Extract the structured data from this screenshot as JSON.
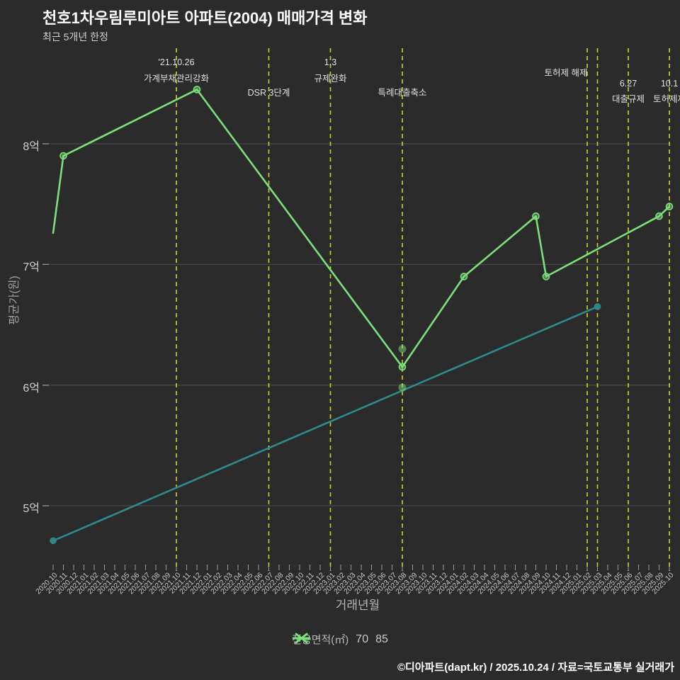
{
  "title": "천호1차우림루미아트 아파트(2004) 매매가격 변화",
  "subtitle": "최근 5개년 한정",
  "footer": "©디아파트(dapt.kr) / 2025.10.24 / 자료=국토교통부 실거래가",
  "colors": {
    "background": "#2b2b2b",
    "grid": "#4e4e53",
    "axis_tick": "#9a9a9a",
    "event_line": "#c3c832",
    "series_70": "#2e8b8a",
    "series_85": "#7ce07a",
    "scatter": "rgba(124,224,122,0.5)"
  },
  "legend": {
    "label": "전용면적(㎡)",
    "items": [
      {
        "name": "70",
        "color": "#2e8b8a"
      },
      {
        "name": "85",
        "color": "#7ce07a"
      }
    ]
  },
  "chart_data": {
    "type": "line",
    "title": "천호1차우림루미아트 아파트(2004) 매매가격 변화",
    "xlabel": "거래년월",
    "ylabel": "평균가(원)",
    "y_unit": "억",
    "ylim": [
      4.5,
      8.8
    ],
    "grid": "horizontal",
    "legend_position": "bottom-center",
    "y_ticks": [
      {
        "label": "8억",
        "value": 8
      },
      {
        "label": "7억",
        "value": 7
      },
      {
        "label": "6억",
        "value": 6
      },
      {
        "label": "5억",
        "value": 5
      }
    ],
    "x_tick_labels": [
      "2020.10",
      "2020.11",
      "2020.12",
      "2021.01",
      "2021.02",
      "2021.03",
      "2021.04",
      "2021.05",
      "2021.06",
      "2021.07",
      "2021.08",
      "2021.09",
      "2021.10",
      "2021.11",
      "2021.12",
      "2022.01",
      "2022.02",
      "2022.03",
      "2022.04",
      "2022.05",
      "2022.06",
      "2022.07",
      "2022.08",
      "2022.09",
      "2022.10",
      "2022.11",
      "2022.12",
      "2023.01",
      "2023.02",
      "2023.03",
      "2023.04",
      "2023.05",
      "2023.06",
      "2023.07",
      "2023.08",
      "2023.09",
      "2023.10",
      "2023.11",
      "2023.12",
      "2024.01",
      "2024.02",
      "2024.03",
      "2024.04",
      "2024.05",
      "2024.06",
      "2024.07",
      "2024.08",
      "2024.09",
      "2024.10",
      "2024.11",
      "2024.12",
      "2025.01",
      "2025.02",
      "2025.03",
      "2025.04",
      "2025.05",
      "2025.06",
      "2025.07",
      "2025.08",
      "2025.09",
      "2025.10"
    ],
    "series": [
      {
        "name": "70",
        "color": "#2e8b8a",
        "points": [
          {
            "x": "2020.10",
            "y": 4.71
          },
          {
            "x": "2025.03",
            "y": 6.65
          }
        ]
      },
      {
        "name": "85",
        "color": "#7ce07a",
        "points": [
          {
            "x": "2020.10",
            "y": 7.26,
            "marker": false
          },
          {
            "x": "2020.11",
            "y": 7.9
          },
          {
            "x": "2021.12",
            "y": 8.45
          },
          {
            "x": "2023.08",
            "y": 6.15
          },
          {
            "x": "2024.02",
            "y": 6.9
          },
          {
            "x": "2024.09",
            "y": 7.4
          },
          {
            "x": "2024.10",
            "y": 6.9
          },
          {
            "x": "2025.09",
            "y": 7.4
          },
          {
            "x": "2025.10",
            "y": 7.48
          }
        ]
      }
    ],
    "scatter_points": [
      {
        "x": "2023.08",
        "y": 6.3
      },
      {
        "x": "2023.08",
        "y": 5.98
      }
    ],
    "events": [
      {
        "x": "2021.10",
        "lines": [
          "'21.10.26",
          "가계부채관리강화"
        ]
      },
      {
        "x": "2022.07",
        "lines": [
          "DSR 3단계"
        ]
      },
      {
        "x": "2023.01",
        "lines": [
          "1.3",
          "규제완화"
        ]
      },
      {
        "x": "2023.08",
        "lines": [
          "특례대출축소"
        ]
      },
      {
        "x": "2025.02",
        "lines": [
          "토허제 해제"
        ]
      },
      {
        "x": "2025.03",
        "lines": []
      },
      {
        "x": "2025.06",
        "lines": [
          "6.27",
          "대출규제"
        ]
      },
      {
        "x": "2025.10",
        "lines": [
          "10.1",
          "토허제재"
        ]
      }
    ]
  }
}
